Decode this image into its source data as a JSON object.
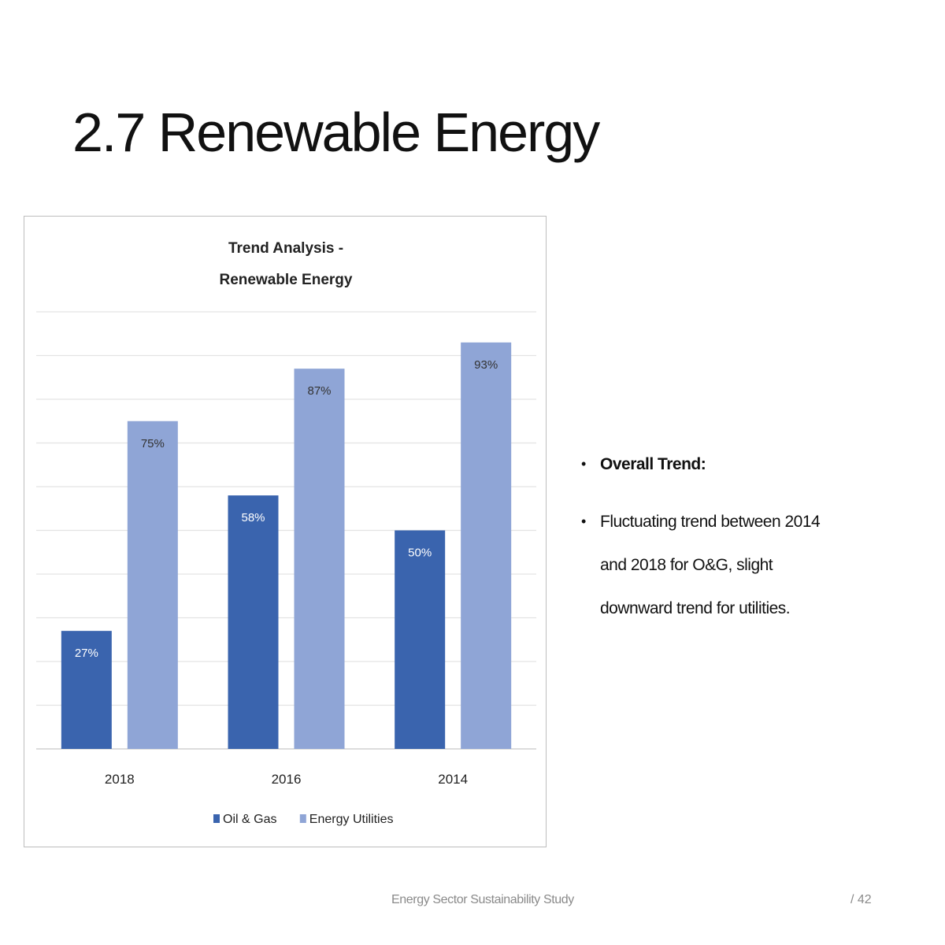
{
  "slide": {
    "title": "2.7 Renewable Energy",
    "footer": "Energy Sector Sustainability Study",
    "page_number": "/ 42"
  },
  "bullets": [
    {
      "text": "Overall Trend:",
      "bold": true
    },
    {
      "text": "Fluctuating trend between 2014 and 2018 for O&G, slight downward trend for utilities.",
      "bold": false
    }
  ],
  "colors": {
    "oil_gas": "#3a64ae",
    "energy_utilities": "#8fa5d6",
    "gridline": "#e3e3e3",
    "axis_text": "#222222"
  },
  "chart_data": {
    "type": "bar",
    "title": "Trend Analysis -\nRenewable Energy",
    "categories": [
      "2018",
      "2016",
      "2014"
    ],
    "series": [
      {
        "name": "Oil & Gas",
        "values": [
          27,
          58,
          50
        ],
        "labels": [
          "27%",
          "58%",
          "50%"
        ],
        "color": "#3a64ae"
      },
      {
        "name": "Energy Utilities",
        "values": [
          75,
          87,
          93
        ],
        "labels": [
          "75%",
          "87%",
          "93%"
        ],
        "color": "#8fa5d6"
      }
    ],
    "ylim": [
      0,
      100
    ],
    "gridlines": true,
    "y_axis_labels_shown": false,
    "legend_position": "bottom"
  }
}
